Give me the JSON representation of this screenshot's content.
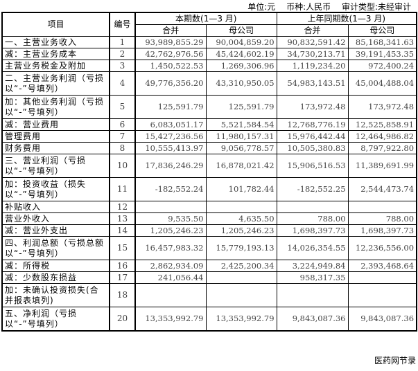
{
  "meta": {
    "unit": "单位:元",
    "currency": "币种:人民币",
    "audit": "审计类型:未经审计"
  },
  "header": {
    "item": "项目",
    "no": "编号",
    "current": "本期数(1—3 月)",
    "previous": "上年同期数(1—3 月)",
    "consolidated": "合并",
    "parent": "母公司"
  },
  "rows": [
    {
      "label": "一、主营业务收入",
      "no": "1",
      "v": [
        "93,989,855.29",
        "90,004,859.20",
        "90,832,591.42",
        "85,168,341.63"
      ]
    },
    {
      "label": "减：主营业务成本",
      "no": "2",
      "v": [
        "42,762,976.56",
        "45,424,602.19",
        "34,730,213.71",
        "39,191,453.35"
      ]
    },
    {
      "label": "主营业务税金及附加",
      "no": "3",
      "v": [
        "1,450,522.53",
        "1,269,306.96",
        "1,119,234.20",
        "972,400.24"
      ]
    },
    {
      "label": "二、主营业务利润（亏损以“-”号填列）",
      "no": "4",
      "v": [
        "49,776,356.20",
        "43,310,950.05",
        "54,983,143.51",
        "45,004,488.04"
      ]
    },
    {
      "label": "加：其他业务利润（亏损以“-”号填列）",
      "no": "5",
      "v": [
        "125,591.79",
        "125,591.79",
        "173,972.48",
        "173,972.48"
      ]
    },
    {
      "label": "减：营业费用",
      "no": "6",
      "v": [
        "6,083,051.17",
        "5,521,584.54",
        "12,768,776.19",
        "12,525,858.91"
      ]
    },
    {
      "label": "管理费用",
      "no": "7",
      "v": [
        "15,427,236.56",
        "11,980,157.31",
        "15,976,442.44",
        "12,464,986.82"
      ]
    },
    {
      "label": "财务费用",
      "no": "8",
      "v": [
        "10,555,413.97",
        "9,056,778.57",
        "10,505,380.83",
        "8,797,922.80"
      ]
    },
    {
      "label": "三、营业利润（亏损以“-”号填列）",
      "no": "10",
      "v": [
        "17,836,246.29",
        "16,878,021.42",
        "15,906,516.53",
        "11,389,691.99"
      ]
    },
    {
      "label": "加：投资收益（损失以“-”号填列）",
      "no": "11",
      "v": [
        "-182,552.24",
        "101,782.44",
        "-182,552.25",
        "2,544,473.74"
      ]
    },
    {
      "label": "补贴收入",
      "no": "12",
      "v": [
        "",
        "",
        "",
        ""
      ]
    },
    {
      "label": "营业外收入",
      "no": "13",
      "v": [
        "9,535.50",
        "4,635.50",
        "788.00",
        "788.00"
      ]
    },
    {
      "label": "减：营业外支出",
      "no": "14",
      "v": [
        "1,205,246.23",
        "1,205,246.23",
        "1,698,397.73",
        "1,698,397.73"
      ]
    },
    {
      "label": "四、利润总额（亏损总额以“-”号填列）",
      "no": "15",
      "v": [
        "16,457,983.32",
        "15,779,193.13",
        "14,026,354.55",
        "12,236,556.00"
      ]
    },
    {
      "label": "减：所得税",
      "no": "16",
      "v": [
        "2,862,934.09",
        "2,425,200.34",
        "3,224,949.84",
        "2,393,468.64"
      ]
    },
    {
      "label": "减：少数股东损益",
      "no": "17",
      "v": [
        "241,056.44",
        "",
        "958,317.35",
        ""
      ]
    },
    {
      "label": "加：未确认投资损失(合并报表填列)",
      "no": "18",
      "v": [
        "",
        "",
        "",
        ""
      ]
    },
    {
      "label": "五、净利润（亏损以“-”号填列）",
      "no": "20",
      "v": [
        "13,353,992.79",
        "13,353,992.79",
        "9,843,087.36",
        "9,843,087.36"
      ]
    }
  ],
  "footer": "医药网节录"
}
